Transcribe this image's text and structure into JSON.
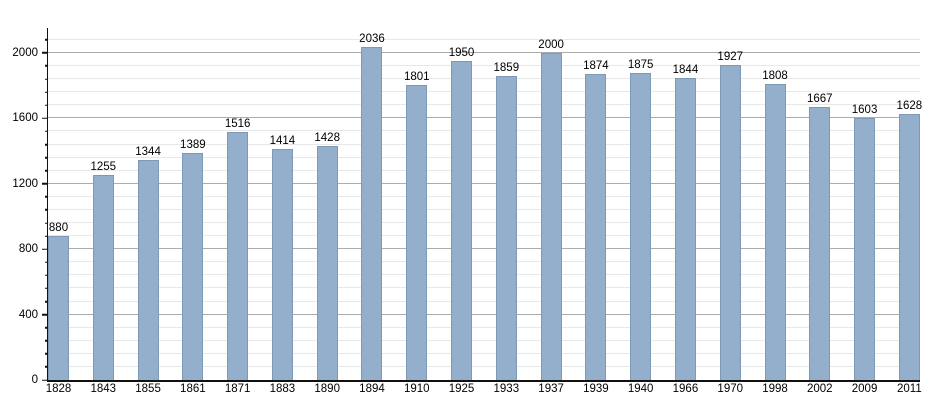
{
  "chart_data": {
    "type": "bar",
    "title": "",
    "xlabel": "",
    "ylabel": "",
    "categories": [
      "1828",
      "1843",
      "1855",
      "1861",
      "1871",
      "1883",
      "1890",
      "1894",
      "1910",
      "1925",
      "1933",
      "1937",
      "1939",
      "1940",
      "1966",
      "1970",
      "1998",
      "2002",
      "2009",
      "2011"
    ],
    "values": [
      880,
      1255,
      1344,
      1389,
      1516,
      1414,
      1428,
      2036,
      1801,
      1950,
      1859,
      2000,
      1874,
      1875,
      1844,
      1927,
      1808,
      1667,
      1603,
      1628
    ],
    "value_labels_shown": true,
    "yticks": [
      0,
      400,
      800,
      1200,
      1600,
      2000
    ],
    "ylim": [
      0,
      2140
    ],
    "grid": {
      "on": true,
      "minor_step": 80,
      "major_step": 400,
      "top_line": 2080
    },
    "legend": null,
    "colors": {
      "background": "#ffffff",
      "bar_fill": "#94afcb",
      "bar_edge": "#7d99b6",
      "grid_major": "#ababab",
      "grid_minor": "#e8e8e8",
      "axis": "#111111",
      "text": "#000000"
    }
  }
}
